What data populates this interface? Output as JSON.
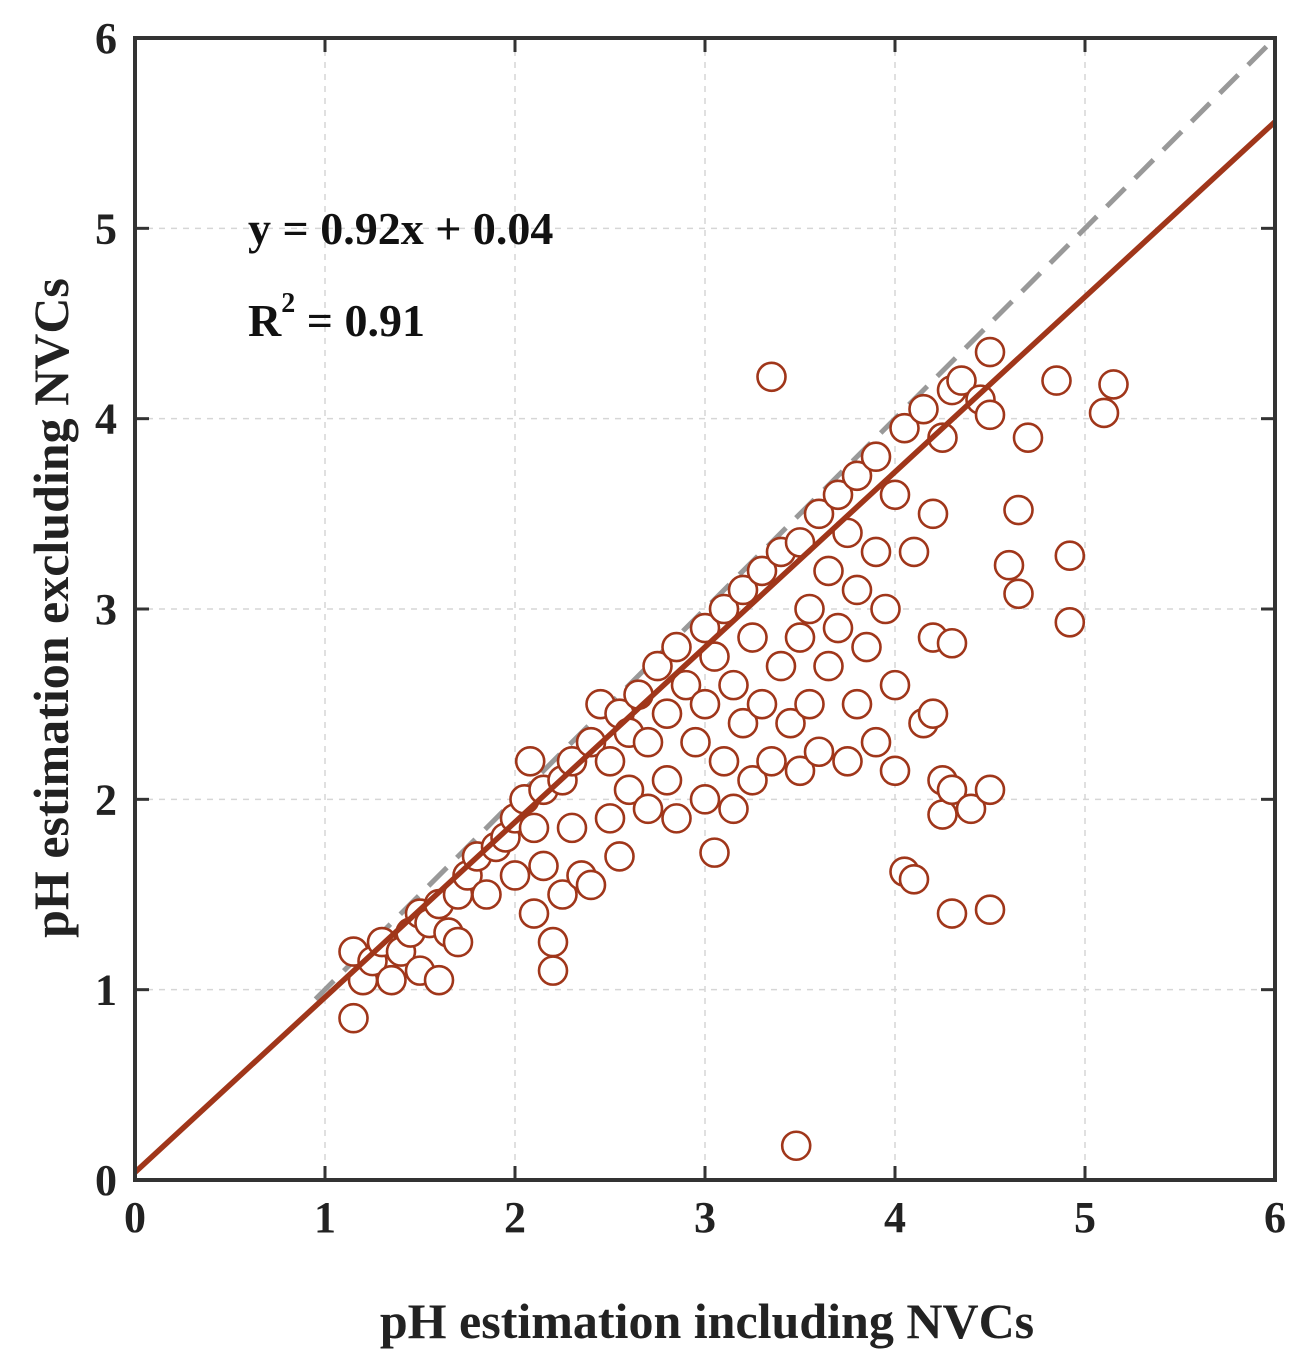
{
  "chart_data": {
    "type": "scatter",
    "xlabel": "pH estimation including NVCs",
    "ylabel": "pH estimation excluding NVCs",
    "xlim": [
      0,
      6
    ],
    "ylim": [
      0,
      6
    ],
    "xticks": [
      "0",
      "1",
      "2",
      "3",
      "4",
      "5",
      "6"
    ],
    "yticks": [
      "0",
      "1",
      "2",
      "3",
      "4",
      "5",
      "6"
    ],
    "grid": true,
    "annotation": {
      "equation": "y = 0.92x + 0.04",
      "r2_prefix": "R",
      "r2_sup": "2",
      "r2_suffix": " = 0.91"
    },
    "fit_line": {
      "slope": 0.92,
      "intercept": 0.04,
      "color": "#a0361a"
    },
    "identity_line": {
      "from": [
        0.95,
        0.95
      ],
      "to": [
        6,
        6
      ],
      "color": "#999999",
      "style": "dashed"
    },
    "marker_color": "#a0361a",
    "points": [
      [
        1.15,
        0.85
      ],
      [
        1.15,
        1.2
      ],
      [
        1.2,
        1.05
      ],
      [
        1.25,
        1.15
      ],
      [
        1.3,
        1.25
      ],
      [
        1.35,
        1.05
      ],
      [
        1.4,
        1.2
      ],
      [
        1.45,
        1.3
      ],
      [
        1.5,
        1.4
      ],
      [
        1.5,
        1.1
      ],
      [
        1.55,
        1.35
      ],
      [
        1.6,
        1.45
      ],
      [
        1.6,
        1.05
      ],
      [
        1.65,
        1.3
      ],
      [
        1.7,
        1.5
      ],
      [
        1.7,
        1.25
      ],
      [
        1.75,
        1.6
      ],
      [
        1.8,
        1.7
      ],
      [
        1.85,
        1.5
      ],
      [
        1.9,
        1.75
      ],
      [
        1.95,
        1.8
      ],
      [
        2.0,
        1.9
      ],
      [
        2.0,
        1.6
      ],
      [
        2.05,
        2.0
      ],
      [
        2.08,
        2.2
      ],
      [
        2.1,
        1.4
      ],
      [
        2.1,
        1.85
      ],
      [
        2.15,
        2.05
      ],
      [
        2.15,
        1.65
      ],
      [
        2.2,
        1.1
      ],
      [
        2.2,
        1.25
      ],
      [
        2.25,
        1.5
      ],
      [
        2.25,
        2.1
      ],
      [
        2.3,
        2.2
      ],
      [
        2.3,
        1.85
      ],
      [
        2.35,
        1.6
      ],
      [
        2.4,
        2.3
      ],
      [
        2.4,
        1.55
      ],
      [
        2.45,
        2.5
      ],
      [
        2.5,
        2.2
      ],
      [
        2.5,
        1.9
      ],
      [
        2.55,
        1.7
      ],
      [
        2.55,
        2.45
      ],
      [
        2.6,
        2.35
      ],
      [
        2.6,
        2.05
      ],
      [
        2.65,
        2.55
      ],
      [
        2.7,
        2.3
      ],
      [
        2.7,
        1.95
      ],
      [
        2.75,
        2.7
      ],
      [
        2.8,
        2.45
      ],
      [
        2.8,
        2.1
      ],
      [
        2.85,
        1.9
      ],
      [
        2.85,
        2.8
      ],
      [
        2.9,
        2.6
      ],
      [
        2.95,
        2.3
      ],
      [
        3.0,
        2.9
      ],
      [
        3.0,
        2.5
      ],
      [
        3.0,
        2.0
      ],
      [
        3.05,
        1.72
      ],
      [
        3.05,
        2.75
      ],
      [
        3.1,
        2.2
      ],
      [
        3.1,
        3.0
      ],
      [
        3.15,
        2.6
      ],
      [
        3.15,
        1.95
      ],
      [
        3.2,
        3.1
      ],
      [
        3.2,
        2.4
      ],
      [
        3.25,
        2.85
      ],
      [
        3.25,
        2.1
      ],
      [
        3.3,
        3.2
      ],
      [
        3.3,
        2.5
      ],
      [
        3.35,
        2.2
      ],
      [
        3.35,
        4.22
      ],
      [
        3.4,
        3.3
      ],
      [
        3.4,
        2.7
      ],
      [
        3.45,
        2.4
      ],
      [
        3.5,
        3.35
      ],
      [
        3.5,
        2.85
      ],
      [
        3.5,
        2.15
      ],
      [
        3.55,
        3.0
      ],
      [
        3.55,
        2.5
      ],
      [
        3.6,
        3.5
      ],
      [
        3.6,
        2.25
      ],
      [
        3.65,
        3.2
      ],
      [
        3.65,
        2.7
      ],
      [
        3.7,
        3.6
      ],
      [
        3.7,
        2.9
      ],
      [
        3.75,
        3.4
      ],
      [
        3.75,
        2.2
      ],
      [
        3.8,
        3.7
      ],
      [
        3.8,
        3.1
      ],
      [
        3.8,
        2.5
      ],
      [
        3.85,
        2.8
      ],
      [
        3.9,
        3.8
      ],
      [
        3.9,
        3.3
      ],
      [
        3.9,
        2.3
      ],
      [
        3.95,
        3.0
      ],
      [
        4.0,
        3.6
      ],
      [
        4.0,
        2.15
      ],
      [
        4.0,
        2.6
      ],
      [
        4.05,
        3.95
      ],
      [
        4.05,
        1.62
      ],
      [
        4.1,
        3.3
      ],
      [
        4.1,
        1.58
      ],
      [
        4.15,
        2.4
      ],
      [
        4.15,
        4.05
      ],
      [
        4.2,
        3.5
      ],
      [
        4.2,
        2.85
      ],
      [
        4.2,
        2.45
      ],
      [
        4.25,
        3.9
      ],
      [
        4.25,
        1.92
      ],
      [
        4.25,
        2.1
      ],
      [
        4.3,
        2.05
      ],
      [
        4.3,
        1.4
      ],
      [
        4.3,
        2.82
      ],
      [
        4.3,
        4.15
      ],
      [
        4.35,
        4.2
      ],
      [
        4.4,
        1.95
      ],
      [
        4.45,
        4.1
      ],
      [
        4.5,
        4.35
      ],
      [
        4.5,
        4.02
      ],
      [
        4.5,
        2.05
      ],
      [
        4.5,
        1.42
      ],
      [
        4.6,
        3.23
      ],
      [
        4.65,
        3.52
      ],
      [
        4.65,
        3.08
      ],
      [
        4.7,
        3.9
      ],
      [
        4.85,
        4.2
      ],
      [
        4.92,
        3.28
      ],
      [
        4.92,
        2.93
      ],
      [
        5.1,
        4.03
      ],
      [
        5.15,
        4.18
      ],
      [
        3.48,
        0.18
      ]
    ]
  }
}
